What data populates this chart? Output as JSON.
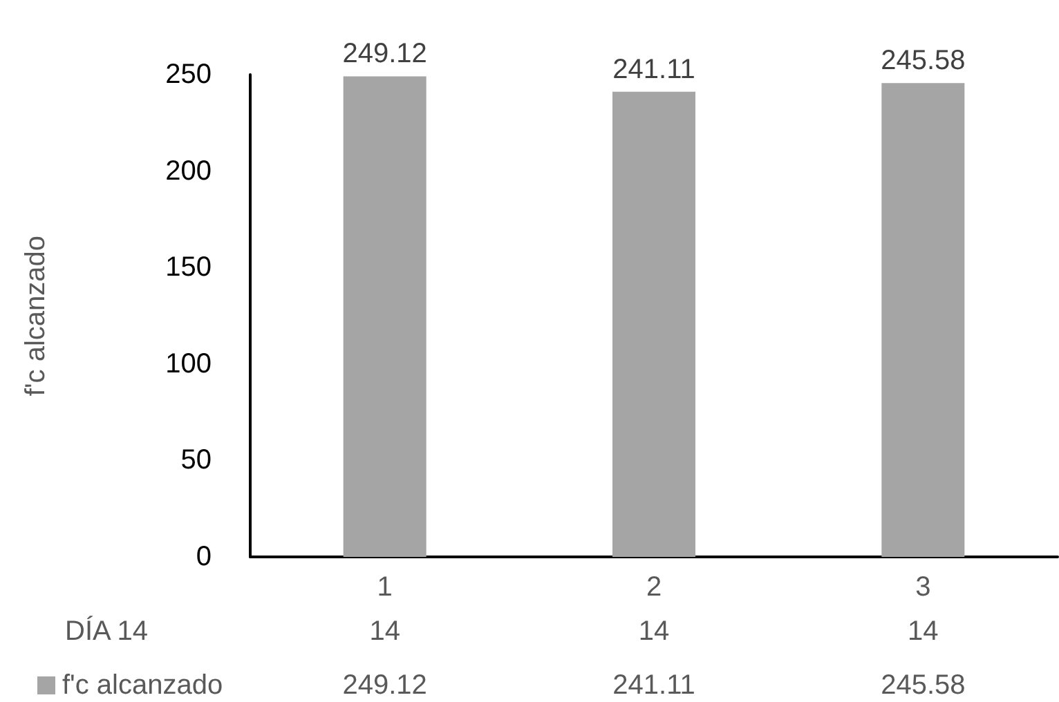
{
  "chart_data": {
    "type": "bar",
    "categories": [
      "1",
      "2",
      "3"
    ],
    "series": [
      {
        "name": "f'c alcanzado",
        "color": "#a5a5a5",
        "values": [
          249.12,
          241.11,
          245.58
        ]
      }
    ],
    "ylabel": "f'c alcanzado",
    "ylim": [
      0,
      250
    ],
    "yticks": [
      0,
      50,
      100,
      150,
      200,
      250
    ],
    "grid": false,
    "legend": "bottom left",
    "data_labels": true,
    "annotations": [
      "DÍA 14",
      "14",
      "14",
      "14",
      "249.12",
      "241.11",
      "245.58"
    ]
  }
}
